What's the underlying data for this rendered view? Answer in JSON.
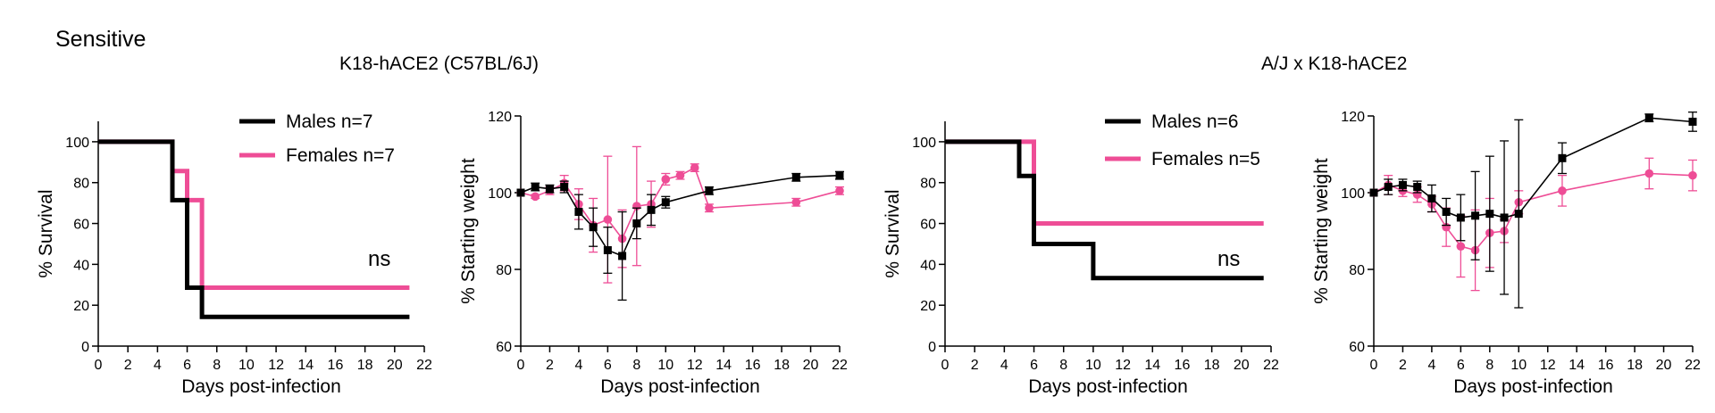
{
  "page": {
    "label": "Sensitive"
  },
  "groups": [
    {
      "title": "K18-hACE2 (C57BL/6J)"
    },
    {
      "title": "A/J x K18-hACE2"
    }
  ],
  "colors": {
    "male": "#000000",
    "female": "#ee4d96"
  },
  "chart_data": [
    {
      "type": "line",
      "title": "",
      "xlabel": "Days post-infection",
      "ylabel": "% Survival",
      "xlim": [
        0,
        22
      ],
      "ylim": [
        0,
        110
      ],
      "xticks": [
        0,
        2,
        4,
        6,
        8,
        10,
        12,
        14,
        16,
        18,
        20,
        22
      ],
      "yticks": [
        0,
        20,
        40,
        60,
        80,
        100
      ],
      "step": true,
      "annotation": "ns",
      "series": [
        {
          "name": "Males n=7",
          "color": "#000000",
          "points": [
            [
              0,
              100
            ],
            [
              5,
              100
            ],
            [
              5,
              71.4
            ],
            [
              6,
              71.4
            ],
            [
              6,
              28.6
            ],
            [
              7,
              28.6
            ],
            [
              7,
              14.3
            ],
            [
              21,
              14.3
            ]
          ]
        },
        {
          "name": "Females n=7",
          "color": "#ee4d96",
          "points": [
            [
              0,
              100
            ],
            [
              5,
              100
            ],
            [
              5,
              85.7
            ],
            [
              6,
              85.7
            ],
            [
              6,
              71.4
            ],
            [
              7,
              71.4
            ],
            [
              7,
              28.6
            ],
            [
              21,
              28.6
            ]
          ]
        }
      ]
    },
    {
      "type": "line",
      "title": "",
      "xlabel": "Days post-infection",
      "ylabel": "% Starting weight",
      "xlim": [
        0,
        22
      ],
      "ylim": [
        60,
        120
      ],
      "xticks": [
        0,
        2,
        4,
        6,
        8,
        10,
        12,
        14,
        16,
        18,
        20,
        22
      ],
      "yticks": [
        60,
        80,
        100,
        120
      ],
      "step": false,
      "series": [
        {
          "name": "Males",
          "color": "#000000",
          "marker": "square",
          "x": [
            0,
            1,
            2,
            3,
            4,
            5,
            6,
            7,
            8,
            9,
            10,
            13,
            19,
            22
          ],
          "y": [
            100,
            101.5,
            101,
            101.5,
            95,
            91,
            85,
            83.5,
            92,
            95.5,
            97.5,
            100.5,
            104,
            104.5
          ],
          "err": [
            0,
            1,
            1,
            1.5,
            4.5,
            5,
            6,
            11.5,
            4,
            4,
            1.5,
            1,
            1,
            1
          ]
        },
        {
          "name": "Females",
          "color": "#ee4d96",
          "marker": "circle",
          "x": [
            0,
            1,
            2,
            3,
            4,
            5,
            6,
            7,
            8,
            9,
            10,
            11,
            12,
            13,
            19,
            22
          ],
          "y": [
            100,
            99,
            100.5,
            102.5,
            97,
            91.5,
            93,
            88,
            96.5,
            97,
            103.5,
            104.5,
            106.5,
            96,
            97.5,
            100.5
          ],
          "err": [
            0,
            0.5,
            1,
            2,
            4,
            7,
            16.5,
            7.5,
            15.5,
            6,
            1.5,
            1,
            1,
            1,
            1,
            1
          ]
        }
      ]
    },
    {
      "type": "line",
      "title": "",
      "xlabel": "Days post-infection",
      "ylabel": "% Survival",
      "xlim": [
        0,
        22
      ],
      "ylim": [
        0,
        110
      ],
      "xticks": [
        0,
        2,
        4,
        6,
        8,
        10,
        12,
        14,
        16,
        18,
        20,
        22
      ],
      "yticks": [
        0,
        20,
        40,
        60,
        80,
        100
      ],
      "step": true,
      "annotation": "ns",
      "series": [
        {
          "name": "Males n=6",
          "color": "#000000",
          "points": [
            [
              0,
              100
            ],
            [
              5,
              100
            ],
            [
              5,
              83.3
            ],
            [
              6,
              83.3
            ],
            [
              6,
              50
            ],
            [
              10,
              50
            ],
            [
              10,
              33.3
            ],
            [
              21.5,
              33.3
            ]
          ]
        },
        {
          "name": "Females n=5",
          "color": "#ee4d96",
          "points": [
            [
              0,
              100
            ],
            [
              6,
              100
            ],
            [
              6,
              60
            ],
            [
              21.5,
              60
            ]
          ]
        }
      ]
    },
    {
      "type": "line",
      "title": "",
      "xlabel": "Days post-infection",
      "ylabel": "% Starting weight",
      "xlim": [
        0,
        22
      ],
      "ylim": [
        60,
        120
      ],
      "xticks": [
        0,
        2,
        4,
        6,
        8,
        10,
        12,
        14,
        16,
        18,
        20,
        22
      ],
      "yticks": [
        60,
        80,
        100,
        120
      ],
      "step": false,
      "series": [
        {
          "name": "Males",
          "color": "#000000",
          "marker": "square",
          "x": [
            0,
            1,
            2,
            3,
            4,
            5,
            6,
            7,
            8,
            9,
            10,
            13,
            19,
            22
          ],
          "y": [
            100,
            101.5,
            102,
            101.5,
            98.5,
            95,
            93.5,
            94,
            94.5,
            93.5,
            94.5,
            109,
            119.5,
            118.5
          ],
          "err": [
            0,
            2,
            1.5,
            1.5,
            3.5,
            3.5,
            6,
            11.5,
            15,
            20,
            24.5,
            4,
            1,
            2.5
          ]
        },
        {
          "name": "Females",
          "color": "#ee4d96",
          "marker": "circle",
          "x": [
            0,
            1,
            2,
            3,
            4,
            5,
            6,
            7,
            8,
            9,
            10,
            13,
            19,
            22
          ],
          "y": [
            100,
            102,
            100.5,
            99.5,
            97,
            91,
            86,
            85,
            89.5,
            90,
            97.5,
            100.5,
            105,
            104.5
          ],
          "err": [
            0,
            2.5,
            1.5,
            2,
            2,
            5,
            8,
            10.5,
            9,
            3,
            3,
            4,
            4,
            4
          ]
        }
      ]
    }
  ]
}
